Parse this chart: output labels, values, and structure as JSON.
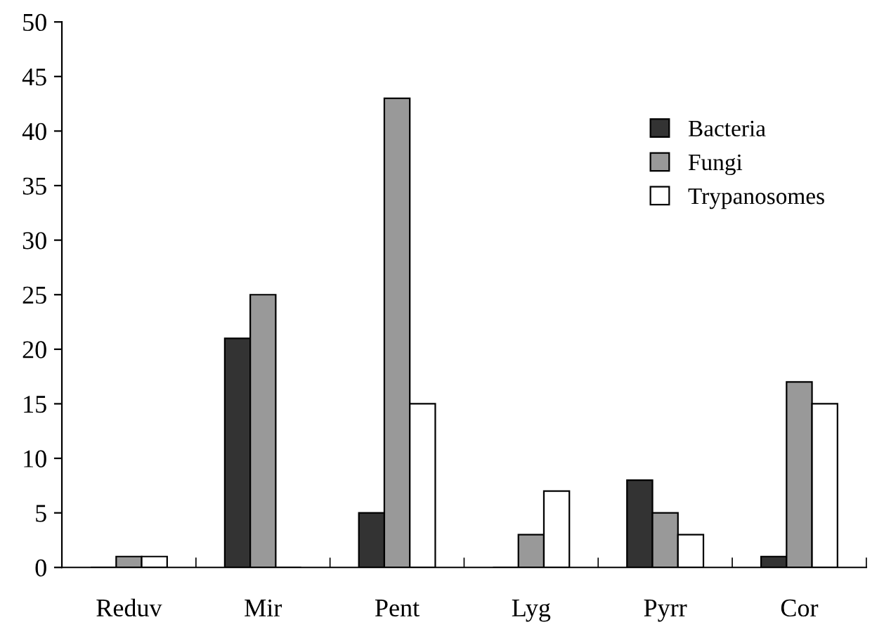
{
  "chart_data": {
    "type": "bar",
    "categories": [
      "Reduv",
      "Mir",
      "Pent",
      "Lyg",
      "Pyrr",
      "Cor"
    ],
    "series": [
      {
        "name": "Bacteria",
        "color": "#333333",
        "values": [
          0,
          21,
          5,
          0,
          8,
          1
        ]
      },
      {
        "name": "Fungi",
        "color": "#999999",
        "values": [
          1,
          25,
          43,
          3,
          5,
          17
        ]
      },
      {
        "name": "Trypanosomes",
        "color": "#ffffff",
        "values": [
          1,
          0,
          15,
          7,
          3,
          15
        ]
      }
    ],
    "ylim": [
      0,
      50
    ],
    "yticks": [
      0,
      5,
      10,
      15,
      20,
      25,
      30,
      35,
      40,
      45,
      50
    ],
    "grid": false,
    "legend": "top right"
  }
}
